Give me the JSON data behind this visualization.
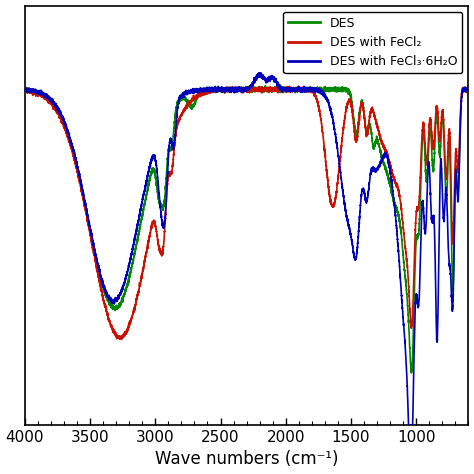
{
  "xlabel": "Wave numbers (cm⁻¹)",
  "xlim": [
    4000,
    600
  ],
  "ylim": [
    0.0,
    1.15
  ],
  "xticks": [
    4000,
    3500,
    3000,
    2500,
    2000,
    1500,
    1000
  ],
  "legend_labels": [
    "DES",
    "DES with FeCl₂",
    "DES with FeCl₃·6H₂O"
  ],
  "line_colors": [
    "#008800",
    "#cc1100",
    "#0000bb"
  ],
  "line_width": 1.2,
  "background_color": "#ffffff"
}
